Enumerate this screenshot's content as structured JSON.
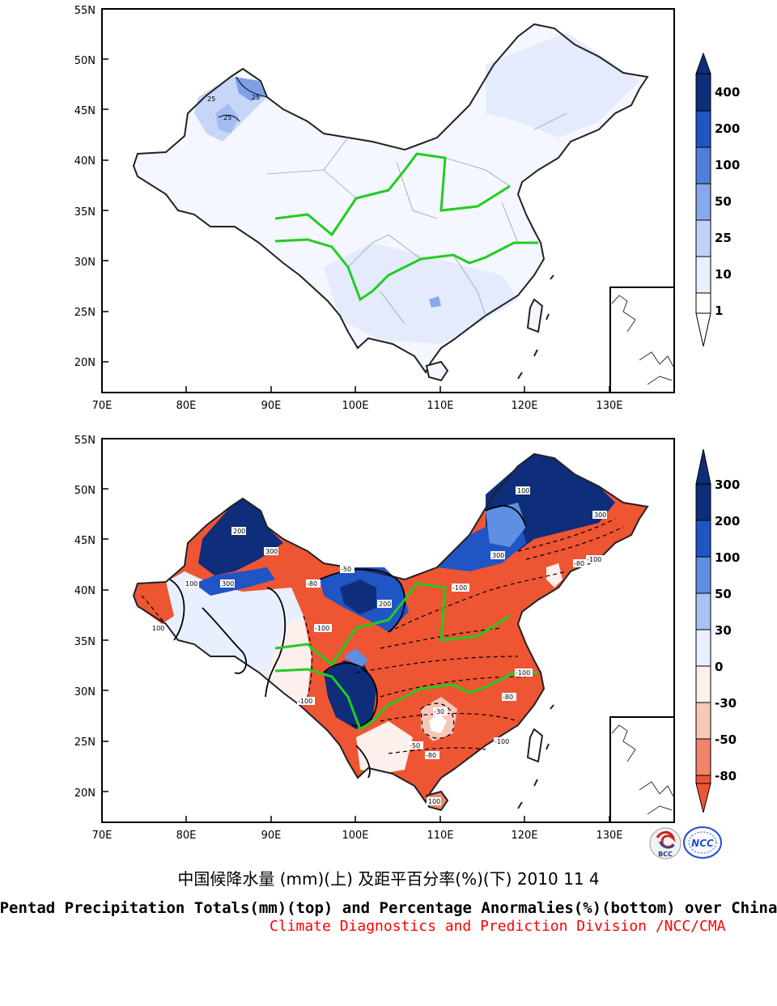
{
  "colors": {
    "river": "#22cc22",
    "border": "#222222",
    "province": "#9a9a9a",
    "blue_scale": [
      "#ffffff",
      "#e8efff",
      "#c2d2f7",
      "#87a8ea",
      "#4f7fd8",
      "#1f55c4",
      "#0e2d7a"
    ],
    "anom_scale": [
      "#ee5533",
      "#f0836a",
      "#f7c7b9",
      "#fdf0ec",
      "#e8efff",
      "#a9c2f2",
      "#5f8fe0",
      "#1f55c4",
      "#0e2d7a"
    ]
  },
  "top_map": {
    "lat_ticks": [
      "55N",
      "50N",
      "45N",
      "40N",
      "35N",
      "30N",
      "25N",
      "20N"
    ],
    "lon_ticks": [
      "70E",
      "80E",
      "90E",
      "100E",
      "110E",
      "120E",
      "130E"
    ],
    "contour_labels": [
      "25",
      "25",
      "25"
    ],
    "colorbar_labels": [
      "400",
      "200",
      "100",
      "50",
      "25",
      "10",
      "1"
    ]
  },
  "bottom_map": {
    "lat_ticks": [
      "55N",
      "50N",
      "45N",
      "40N",
      "35N",
      "30N",
      "25N",
      "20N"
    ],
    "lon_ticks": [
      "70E",
      "80E",
      "90E",
      "100E",
      "110E",
      "120E",
      "130E"
    ],
    "contour_labels": [
      "200",
      "300",
      "100",
      "300",
      "-50",
      "-80",
      "-100",
      "100",
      "300",
      "-100",
      "-80",
      "-100",
      "-30",
      "-50",
      "-80",
      "100",
      "300",
      "200",
      "-100",
      "-80",
      "-100",
      "100",
      "-100"
    ],
    "colorbar_labels": [
      "300",
      "200",
      "100",
      "50",
      "30",
      "0",
      "-30",
      "-50",
      "-80"
    ]
  },
  "logos": {
    "bcc": "BCC",
    "ncc": "NCC"
  },
  "captions": {
    "chinese": "中国候降水量 (mm)(上) 及距平百分率(%)(下) 2010 11 4",
    "english": "Pentad Precipitation Totals(mm)(top) and Percentage Anormalies(%)(bottom) over China",
    "division": "Climate Diagnostics and Prediction Division /NCC/CMA"
  }
}
